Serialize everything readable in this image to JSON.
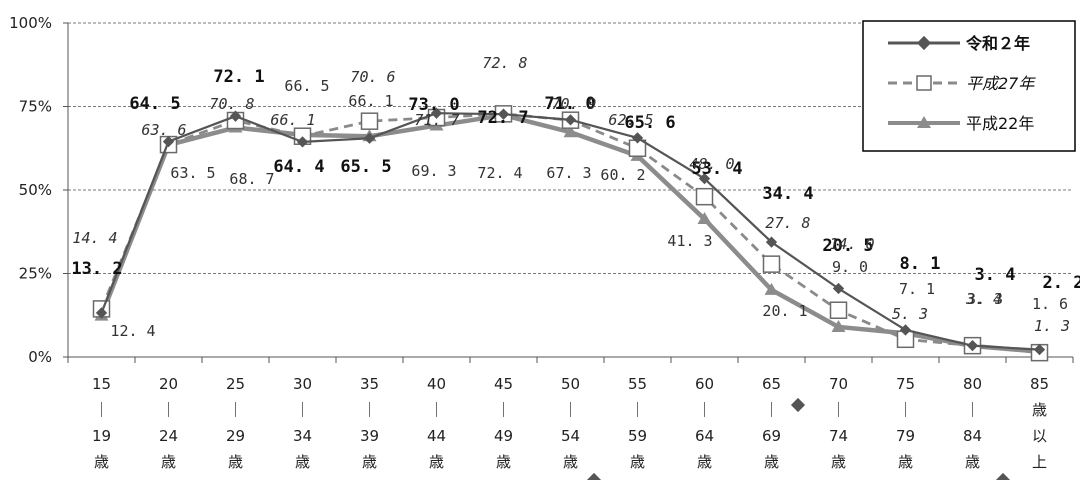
{
  "chart_data": {
    "type": "line",
    "ylim": [
      0,
      100
    ],
    "yticks": [
      "0%",
      "25%",
      "50%",
      "75%",
      "100%"
    ],
    "ytick_values": [
      0,
      25,
      50,
      75,
      100
    ],
    "grid": true,
    "legend_position": "top-right",
    "categories": [
      [
        "15",
        "｜",
        "19",
        "歳"
      ],
      [
        "20",
        "｜",
        "24",
        "歳"
      ],
      [
        "25",
        "｜",
        "29",
        "歳"
      ],
      [
        "30",
        "｜",
        "34",
        "歳"
      ],
      [
        "35",
        "｜",
        "39",
        "歳"
      ],
      [
        "40",
        "｜",
        "44",
        "歳"
      ],
      [
        "45",
        "｜",
        "49",
        "歳"
      ],
      [
        "50",
        "｜",
        "54",
        "歳"
      ],
      [
        "55",
        "｜",
        "59",
        "歳"
      ],
      [
        "60",
        "｜",
        "64",
        "歳"
      ],
      [
        "65",
        "｜",
        "69",
        "歳"
      ],
      [
        "70",
        "｜",
        "74",
        "歳"
      ],
      [
        "75",
        "｜",
        "79",
        "歳"
      ],
      [
        "80",
        "｜",
        "84",
        "歳"
      ],
      [
        "85",
        "歳",
        "以",
        "上"
      ]
    ],
    "series": [
      {
        "name": "令和２年",
        "values": [
          13.2,
          64.5,
          72.1,
          64.4,
          65.5,
          73.0,
          72.7,
          71.0,
          65.6,
          53.4,
          34.4,
          20.5,
          8.1,
          3.4,
          2.2
        ],
        "labels": [
          "13. 2",
          "64. 5",
          "72. 1",
          "64. 4",
          "65. 5",
          "73. 0",
          "72. 7",
          "71. 0",
          "65. 6",
          "53. 4",
          "34. 4",
          "20. 5",
          "8. 1",
          "3. 4",
          "2. 2"
        ],
        "color": "#555555",
        "marker": "diamond",
        "line_style": "solid"
      },
      {
        "name": "平成27年",
        "values": [
          14.4,
          63.6,
          70.8,
          66.1,
          70.6,
          71.7,
          72.8,
          70.9,
          62.5,
          48.0,
          27.8,
          14.0,
          5.3,
          3.4,
          1.3
        ],
        "labels": [
          "14. 4",
          "63. 6",
          "70. 8",
          "66. 1",
          "70. 6",
          "71. 7",
          "72. 8",
          "70. 9",
          "62. 5",
          "48. 0",
          "27. 8",
          "14. 0",
          "5. 3",
          "3. 4",
          "1. 3"
        ],
        "color": "#8a8a8a",
        "marker": "square-open",
        "line_style": "dashed"
      },
      {
        "name": "平成22年",
        "values": [
          12.4,
          63.5,
          68.7,
          66.5,
          66.1,
          69.3,
          72.4,
          67.3,
          60.2,
          41.3,
          20.1,
          9.0,
          7.1,
          3.3,
          1.6
        ],
        "labels": [
          "12. 4",
          "63. 5",
          "68. 7",
          "66. 5",
          "66. 1",
          "69. 3",
          "72. 4",
          "67. 3",
          "60. 2",
          "41. 3",
          "20. 1",
          "9. 0",
          "7. 1",
          "3. 3",
          "1. 6"
        ],
        "color": "#8c8c8c",
        "marker": "triangle",
        "line_style": "solid"
      }
    ]
  }
}
